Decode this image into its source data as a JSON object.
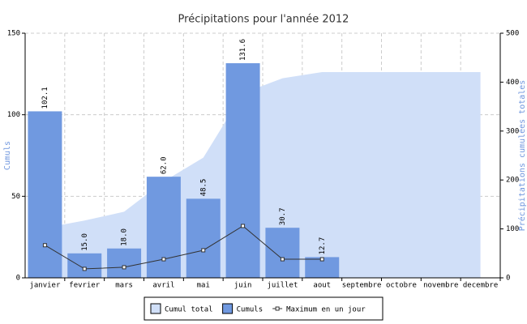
{
  "chart_data": {
    "type": "bar",
    "title": "Précipitations pour l'année 2012",
    "y_label": "Cumuls",
    "y2_label": "Précipitations cumulées totales",
    "categories": [
      "janvier",
      "fevrier",
      "mars",
      "avril",
      "mai",
      "juin",
      "juillet",
      "aout",
      "septembre",
      "octobre",
      "novembre",
      "decembre"
    ],
    "ylim": [
      0,
      150
    ],
    "yticks": [
      0,
      50,
      100,
      150
    ],
    "y2lim": [
      0,
      500
    ],
    "y2ticks": [
      0,
      100,
      200,
      300,
      400,
      500
    ],
    "grid": true,
    "series": [
      {
        "name": "Cumul total",
        "type": "area",
        "axis": "y2",
        "color": "#d0dff8",
        "values": [
          102.1,
          117.1,
          135.1,
          197.1,
          245.6,
          377.2,
          407.9,
          420.6,
          420.6,
          420.6,
          420.6,
          420.6
        ]
      },
      {
        "name": "Cumuls",
        "type": "bar",
        "color": "#7099e0",
        "values": [
          102.1,
          15.0,
          18.0,
          62.0,
          48.5,
          131.6,
          30.7,
          12.7,
          null,
          null,
          null,
          null
        ],
        "value_labels": [
          "102.1",
          "15.0",
          "18.0",
          "62.0",
          "48.5",
          "131.6",
          "30.7",
          "12.7",
          null,
          null,
          null,
          null
        ]
      },
      {
        "name": "Maximum en un jour",
        "type": "line",
        "color": "#333333",
        "values": [
          20,
          5.5,
          6.5,
          11.4,
          16.9,
          31.8,
          11.4,
          11.4,
          null,
          null,
          null,
          null
        ]
      }
    ]
  }
}
